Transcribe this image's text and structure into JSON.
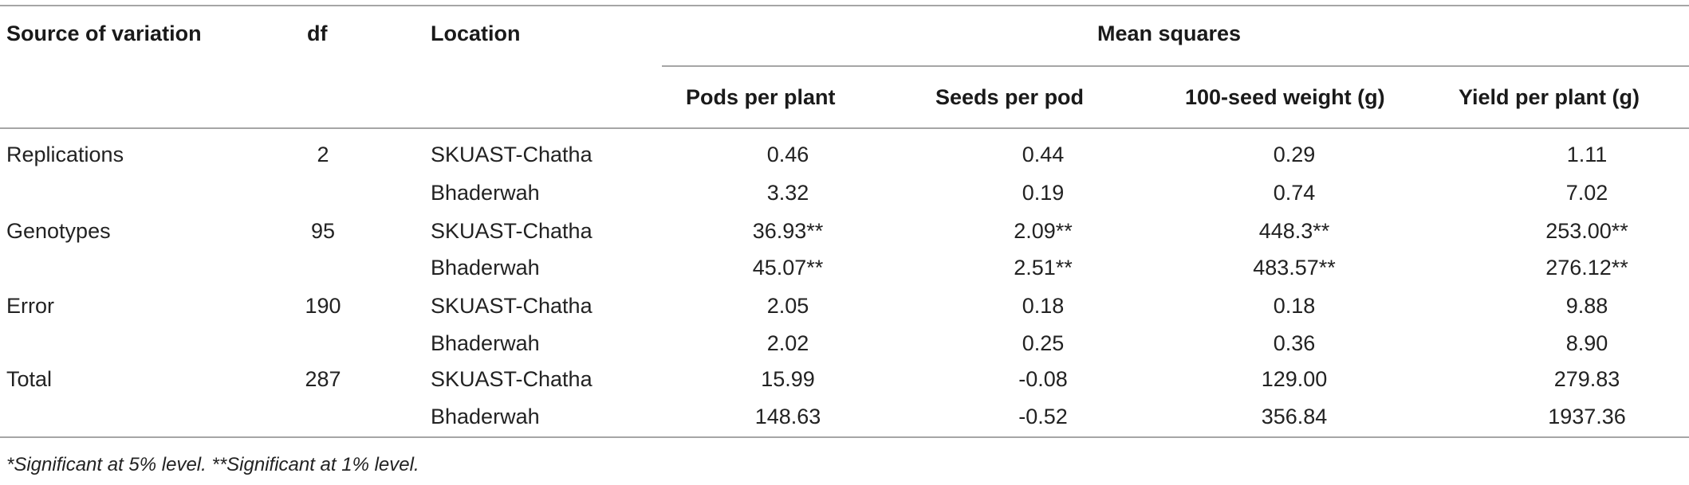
{
  "table": {
    "headers": {
      "source": "Source of variation",
      "df": "df",
      "location": "Location",
      "group": "Mean squares",
      "traits": [
        "Pods per plant",
        "Seeds per pod",
        "100-seed weight (g)",
        "Yield per plant (g)"
      ]
    },
    "rows": [
      {
        "source": "Replications",
        "df": "2",
        "location": "SKUAST-Chatha",
        "values": [
          "0.46",
          "0.44",
          "0.29",
          "1.11"
        ]
      },
      {
        "source": "",
        "df": "",
        "location": "Bhaderwah",
        "values": [
          "3.32",
          "0.19",
          "0.74",
          "7.02"
        ]
      },
      {
        "source": "Genotypes",
        "df": "95",
        "location": "SKUAST-Chatha",
        "values": [
          "36.93**",
          "2.09**",
          "448.3**",
          "253.00**"
        ]
      },
      {
        "source": "",
        "df": "",
        "location": "Bhaderwah",
        "values": [
          "45.07**",
          "2.51**",
          "483.57**",
          "276.12**"
        ]
      },
      {
        "source": "Error",
        "df": "190",
        "location": "SKUAST-Chatha",
        "values": [
          "2.05",
          "0.18",
          "0.18",
          "9.88"
        ]
      },
      {
        "source": "",
        "df": "",
        "location": "Bhaderwah",
        "values": [
          "2.02",
          "0.25",
          "0.36",
          "8.90"
        ]
      },
      {
        "source": "Total",
        "df": "287",
        "location": "SKUAST-Chatha",
        "values": [
          "15.99",
          "-0.08",
          "129.00",
          "279.83"
        ]
      },
      {
        "source": "",
        "df": "",
        "location": "Bhaderwah",
        "values": [
          "148.63",
          "-0.52",
          "356.84",
          "1937.36"
        ]
      }
    ],
    "footnote": "*Significant at 5% level. **Significant at 1% level."
  }
}
